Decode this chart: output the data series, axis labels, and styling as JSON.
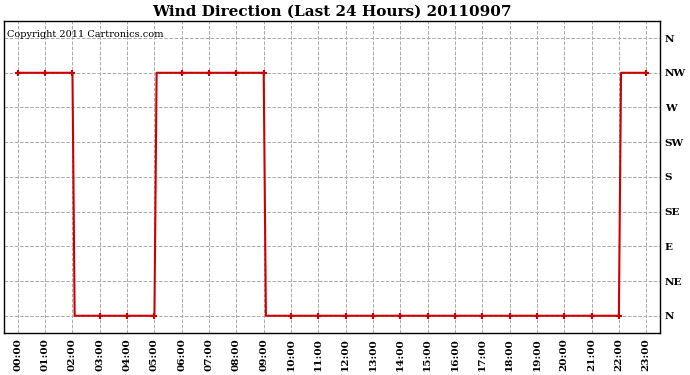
{
  "title": "Wind Direction (Last 24 Hours) 20110907",
  "copyright_text": "Copyright 2011 Cartronics.com",
  "background_color": "#ffffff",
  "line_color": "#cc0000",
  "grid_color": "#aaaaaa",
  "y_labels": [
    "N",
    "NE",
    "E",
    "SE",
    "S",
    "SW",
    "W",
    "NW",
    "N"
  ],
  "y_values": [
    0,
    1,
    2,
    3,
    4,
    5,
    6,
    7,
    8
  ],
  "x_labels": [
    "00:00",
    "01:00",
    "02:00",
    "03:00",
    "04:00",
    "05:00",
    "06:00",
    "07:00",
    "08:00",
    "09:00",
    "10:00",
    "11:00",
    "12:00",
    "13:00",
    "14:00",
    "15:00",
    "16:00",
    "17:00",
    "18:00",
    "19:00",
    "20:00",
    "21:00",
    "22:00",
    "23:00"
  ],
  "wind_data": {
    "times": [
      0,
      1,
      2,
      2.08,
      3,
      4,
      5,
      5.08,
      6,
      7,
      8,
      9,
      9.08,
      10,
      11,
      12,
      13,
      14,
      15,
      16,
      17,
      18,
      19,
      20,
      21,
      22,
      22.08,
      23
    ],
    "directions": [
      7,
      7,
      7,
      0,
      0,
      0,
      0,
      7,
      7,
      7,
      7,
      7,
      0,
      0,
      0,
      0,
      0,
      0,
      0,
      0,
      0,
      0,
      0,
      0,
      0,
      0,
      7,
      7
    ]
  },
  "marker_times": [
    0,
    1,
    2,
    3,
    4,
    5,
    6,
    7,
    8,
    9,
    10,
    11,
    12,
    13,
    14,
    15,
    16,
    17,
    18,
    19,
    20,
    21,
    22,
    23
  ],
  "marker_directions": [
    7,
    7,
    7,
    0,
    0,
    0,
    7,
    7,
    7,
    7,
    0,
    0,
    0,
    0,
    0,
    0,
    0,
    0,
    0,
    0,
    0,
    0,
    0,
    7
  ],
  "title_fontsize": 11,
  "copyright_fontsize": 7,
  "tick_fontsize": 7.5
}
